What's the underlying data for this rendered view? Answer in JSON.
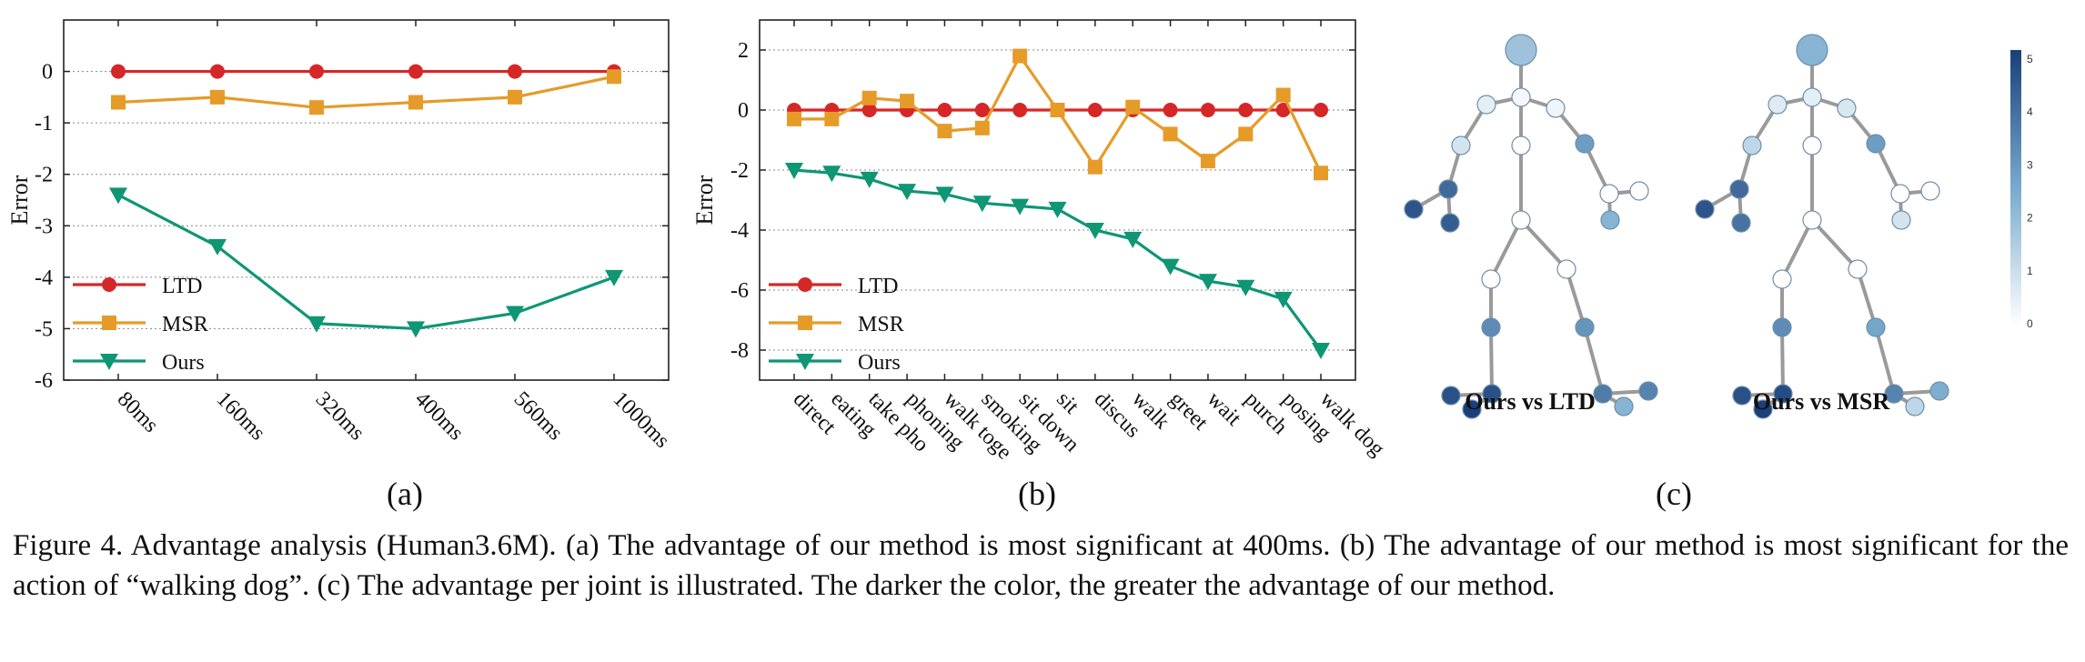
{
  "chart_data": [
    {
      "type": "line",
      "panel_label": "(a)",
      "ylabel": "Error",
      "categories": [
        "80ms",
        "160ms",
        "320ms",
        "400ms",
        "560ms",
        "1000ms"
      ],
      "ylim": [
        -6,
        1
      ],
      "yticks": [
        0,
        -1,
        -2,
        -3,
        -4,
        -5,
        -6
      ],
      "grid": "horizontal dotted",
      "legend_position": "bottom-left",
      "series": [
        {
          "name": "LTD",
          "color": "#d62728",
          "marker": "circle",
          "values": [
            0,
            0,
            0,
            0,
            0,
            0
          ]
        },
        {
          "name": "MSR",
          "color": "#e69b28",
          "marker": "square",
          "values": [
            -0.6,
            -0.5,
            -0.7,
            -0.6,
            -0.5,
            -0.1
          ]
        },
        {
          "name": "Ours",
          "color": "#0f9674",
          "marker": "triangle-down",
          "values": [
            -2.4,
            -3.4,
            -4.9,
            -5.0,
            -4.7,
            -4.0
          ]
        }
      ]
    },
    {
      "type": "line",
      "panel_label": "(b)",
      "ylabel": "Error",
      "categories": [
        "direct",
        "eating",
        "take pho",
        "phoning",
        "walk toge",
        "smoking",
        "sit down",
        "sit",
        "discus",
        "walk",
        "greet",
        "wait",
        "purch",
        "posing",
        "walk dog"
      ],
      "ylim": [
        -9,
        3
      ],
      "yticks": [
        2,
        0,
        -2,
        -4,
        -6,
        -8
      ],
      "grid": "horizontal dotted",
      "legend_position": "bottom-left",
      "series": [
        {
          "name": "LTD",
          "color": "#d62728",
          "marker": "circle",
          "values": [
            0,
            0,
            0,
            0,
            0,
            0,
            0,
            0,
            0,
            0,
            0,
            0,
            0,
            0,
            0
          ]
        },
        {
          "name": "MSR",
          "color": "#e69b28",
          "marker": "square",
          "values": [
            -0.3,
            -0.3,
            0.4,
            0.3,
            -0.7,
            -0.6,
            1.8,
            0.0,
            -1.9,
            0.1,
            -0.8,
            -1.7,
            -0.8,
            0.5,
            -2.1
          ]
        },
        {
          "name": "Ours",
          "color": "#0f9674",
          "marker": "triangle-down",
          "values": [
            -2.0,
            -2.1,
            -2.3,
            -2.7,
            -2.8,
            -3.1,
            -3.2,
            -3.3,
            -4.0,
            -4.3,
            -5.2,
            -5.7,
            -5.9,
            -6.3,
            -8.0
          ]
        }
      ]
    }
  ],
  "skeleton_panel": {
    "panel_label": "(c)",
    "titles": [
      "Ours vs LTD",
      "Ours vs MSR"
    ],
    "colorbar": {
      "min": 0,
      "max": 5,
      "ticks": [
        "5",
        "4",
        "3",
        "2",
        "1",
        "0"
      ],
      "low_color": "#ffffff",
      "high_color": "#1a3f7a"
    },
    "joint_values": [
      [
        1.8,
        0.2,
        0.5,
        0.3,
        0.8,
        4.0,
        4.5,
        4.3,
        2.8,
        0.0,
        0.0,
        0.0,
        0.0,
        3.2,
        4.6,
        5.0,
        4.6,
        0.0,
        0.0,
        2.2,
        3.0,
        3.4,
        3.6,
        2.2,
        3.4,
        3.6
      ],
      [
        2.2,
        0.5,
        0.6,
        0.7,
        1.2,
        4.0,
        4.5,
        3.8,
        2.8,
        0.0,
        0.0,
        0.0,
        0.0,
        3.2,
        4.7,
        5.0,
        4.6,
        0.0,
        0.0,
        0.8,
        2.6,
        3.2,
        3.4,
        1.2,
        2.4,
        1.6
      ]
    ]
  },
  "caption": {
    "text": "Figure 4.  Advantage analysis (Human3.6M). (a) The advantage of our method is most significant at 400ms.  (b) The advantage of our method is most significant for the action of “walking dog”. (c) The advantage per joint is illustrated. The darker the color, the greater the advantage of our method."
  }
}
